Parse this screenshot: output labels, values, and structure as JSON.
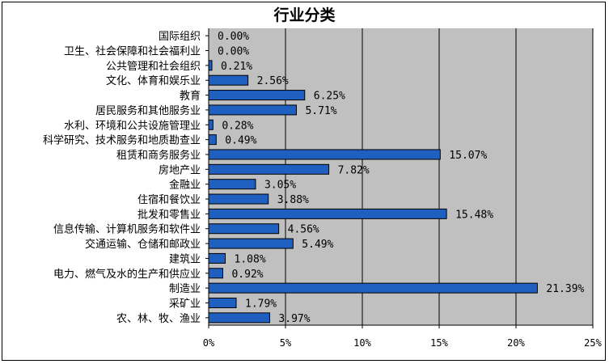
{
  "chart_data": {
    "type": "bar",
    "orientation": "horizontal",
    "title": "行业分类",
    "categories": [
      "国际组织",
      "卫生、社会保障和社会福利业",
      "公共管理和社会组织",
      "文化、体育和娱乐业",
      "教育",
      "居民服务和其他服务业",
      "水利、环境和公共设施管理业",
      "科学研究、技术服务和地质勘查业",
      "租赁和商务服务业",
      "房地产业",
      "金融业",
      "住宿和餐饮业",
      "批发和零售业",
      "信息传输、计算机服务和软件业",
      "交通运输、仓储和邮政业",
      "建筑业",
      "电力、燃气及水的生产和供应业",
      "制造业",
      "采矿业",
      "农、林、牧、渔业"
    ],
    "values": [
      0.0,
      0.0,
      0.21,
      2.56,
      6.25,
      5.71,
      0.28,
      0.49,
      15.07,
      7.82,
      3.05,
      3.88,
      15.48,
      4.56,
      5.49,
      1.08,
      0.92,
      21.39,
      1.79,
      3.97
    ],
    "value_labels": [
      "0.00%",
      "0.00%",
      "0.21%",
      "2.56%",
      "6.25%",
      "5.71%",
      "0.28%",
      "0.49%",
      "15.07%",
      "7.82%",
      "3.05%",
      "3.88%",
      "15.48%",
      "4.56%",
      "5.49%",
      "1.08%",
      "0.92%",
      "21.39%",
      "1.79%",
      "3.97%"
    ],
    "xticks": [
      "0%",
      "5%",
      "10%",
      "15%",
      "20%",
      "25%"
    ],
    "xlim": [
      0,
      25
    ],
    "grid": true,
    "colors": {
      "bar": "#1F5FBF",
      "bar_border": "#000000",
      "plot_bg": "#C0C0C0",
      "grid": "#000000"
    }
  }
}
